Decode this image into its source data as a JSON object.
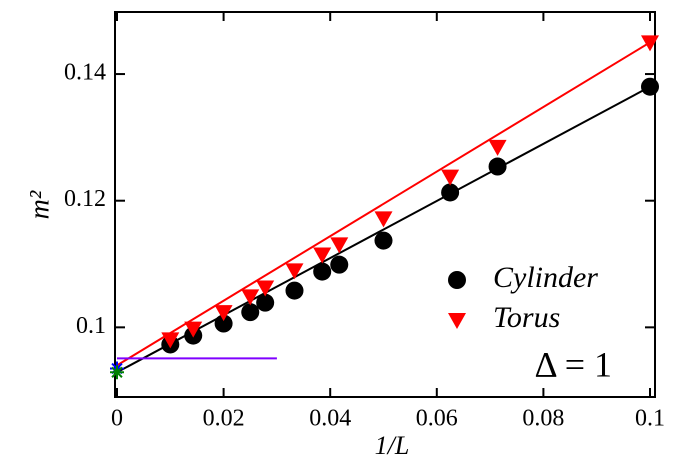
{
  "chart_data": {
    "type": "scatter",
    "xlabel": "1/L",
    "ylabel": "m²",
    "xlim": [
      0,
      0.1
    ],
    "ylim": [
      0.089,
      0.1498
    ],
    "xticks": [
      0,
      0.02,
      0.04,
      0.06,
      0.08,
      0.1
    ],
    "yticks": [
      0.1,
      0.12,
      0.14
    ],
    "series": [
      {
        "name": "Cylinder",
        "color": "#000000",
        "marker": "circle",
        "x": [
          0.01,
          0.0143,
          0.02,
          0.025,
          0.0278,
          0.0333,
          0.0385,
          0.0417,
          0.05,
          0.0625,
          0.0714,
          0.1
        ],
        "values": [
          0.0973,
          0.0987,
          0.1006,
          0.1024,
          0.1039,
          0.1058,
          0.1088,
          0.1099,
          0.1137,
          0.1213,
          0.1254,
          0.138
        ]
      },
      {
        "name": "Torus",
        "color": "#ff0000",
        "marker": "triangle",
        "x": [
          0.01,
          0.0143,
          0.02,
          0.025,
          0.0278,
          0.0333,
          0.0385,
          0.0417,
          0.05,
          0.0625,
          0.0714,
          0.1
        ],
        "values": [
          0.0981,
          0.0998,
          0.1024,
          0.1049,
          0.1063,
          0.109,
          0.1115,
          0.1131,
          0.1172,
          0.1238,
          0.1285,
          0.145
        ]
      }
    ],
    "lines": [
      {
        "color": "#000000",
        "x": [
          0,
          0.1
        ],
        "values": [
          0.0929,
          0.138
        ]
      },
      {
        "color": "#ff0000",
        "x": [
          0,
          0.1
        ],
        "values": [
          0.094,
          0.145
        ]
      },
      {
        "color": "#7f00ff",
        "x": [
          0,
          0.03
        ],
        "values": [
          0.0951,
          0.0951
        ]
      }
    ],
    "extrapolated": [
      {
        "color": "#0000ff",
        "x": 0,
        "value": 0.0935
      },
      {
        "color": "#008000",
        "x": 0,
        "value": 0.0929
      }
    ],
    "annotation": "Δ = 1"
  }
}
